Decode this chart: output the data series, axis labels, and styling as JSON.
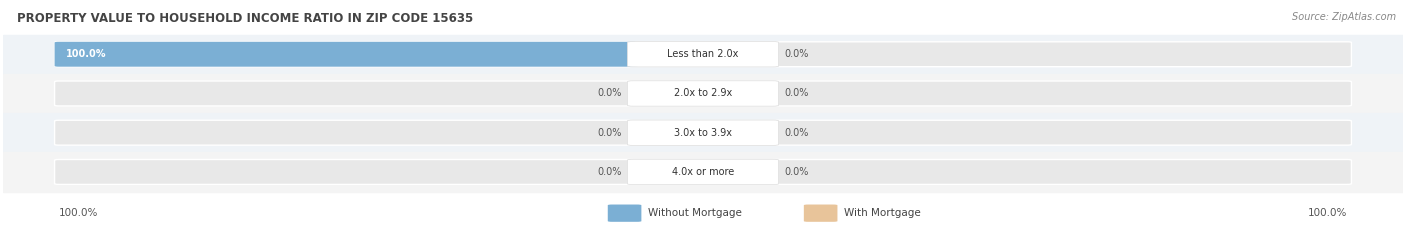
{
  "title": "PROPERTY VALUE TO HOUSEHOLD INCOME RATIO IN ZIP CODE 15635",
  "source": "Source: ZipAtlas.com",
  "categories": [
    "Less than 2.0x",
    "2.0x to 2.9x",
    "3.0x to 3.9x",
    "4.0x or more"
  ],
  "without_mortgage": [
    100.0,
    0.0,
    0.0,
    0.0
  ],
  "with_mortgage": [
    0.0,
    0.0,
    0.0,
    0.0
  ],
  "without_mortgage_color": "#7bafd4",
  "with_mortgage_color": "#e8c49a",
  "bar_bg_color": "#e8e8e8",
  "row_bg_even": "#eff3f7",
  "row_bg_odd": "#f4f4f4",
  "title_color": "#444444",
  "source_color": "#888888",
  "figsize": [
    14.06,
    2.33
  ],
  "dpi": 100
}
